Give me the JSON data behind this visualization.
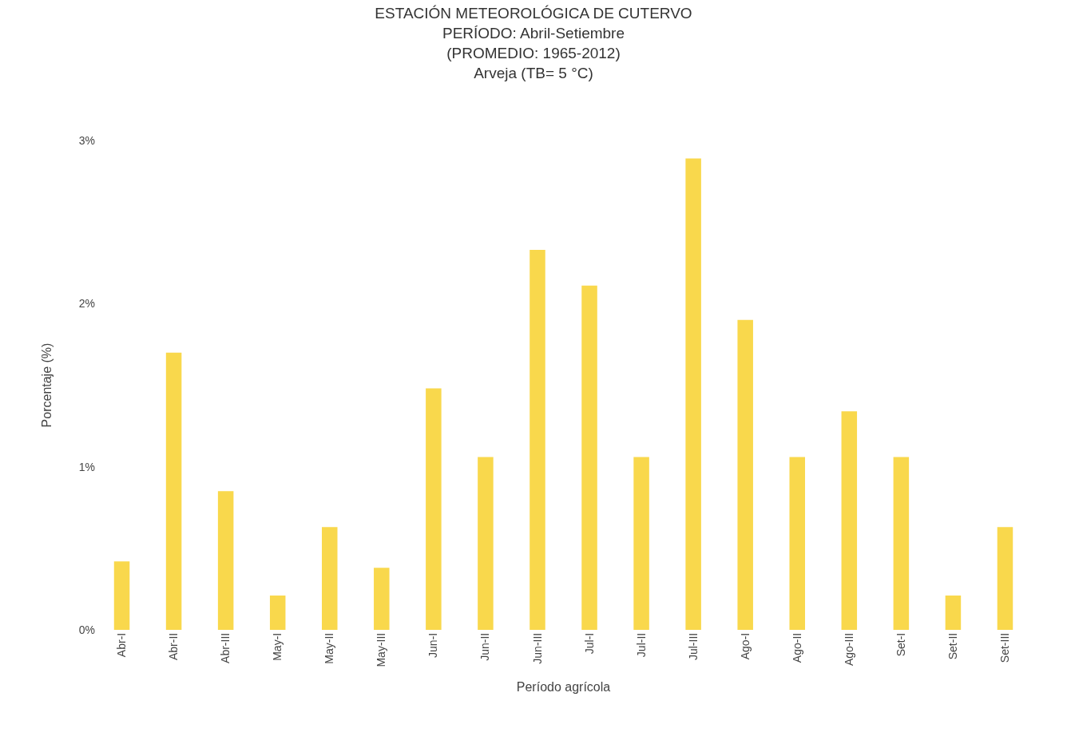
{
  "chart_data": {
    "type": "bar",
    "title": "ESTACIÓN METEOROLÓGICA DE CUTERVO",
    "subtitle": "PERÍODO: Abril-Setiembre\n(PROMEDIO: 1965-2012)\nArveja (TB= 5 °C)",
    "xlabel": "Período agrícola",
    "ylabel": "Porcentaje (%)",
    "categories": [
      "Abr-I",
      "Abr-II",
      "Abr-III",
      "May-I",
      "May-II",
      "May-III",
      "Jun-I",
      "Jun-II",
      "Jun-III",
      "Jul-I",
      "Jul-II",
      "Jul-III",
      "Ago-I",
      "Ago-II",
      "Ago-III",
      "Set-I",
      "Set-II",
      "Set-III"
    ],
    "values": [
      0.42,
      1.7,
      0.85,
      0.21,
      0.63,
      0.38,
      1.48,
      1.06,
      2.33,
      2.11,
      1.06,
      2.89,
      1.9,
      1.06,
      1.34,
      1.06,
      0.21,
      0.63
    ],
    "color": "#f9d84c",
    "ylim": [
      0,
      3
    ],
    "yticks": [
      {
        "value": 0,
        "label": "0%"
      },
      {
        "value": 1,
        "label": "1%"
      },
      {
        "value": 2,
        "label": "2%"
      },
      {
        "value": 3,
        "label": "3%"
      }
    ],
    "grid": false
  }
}
